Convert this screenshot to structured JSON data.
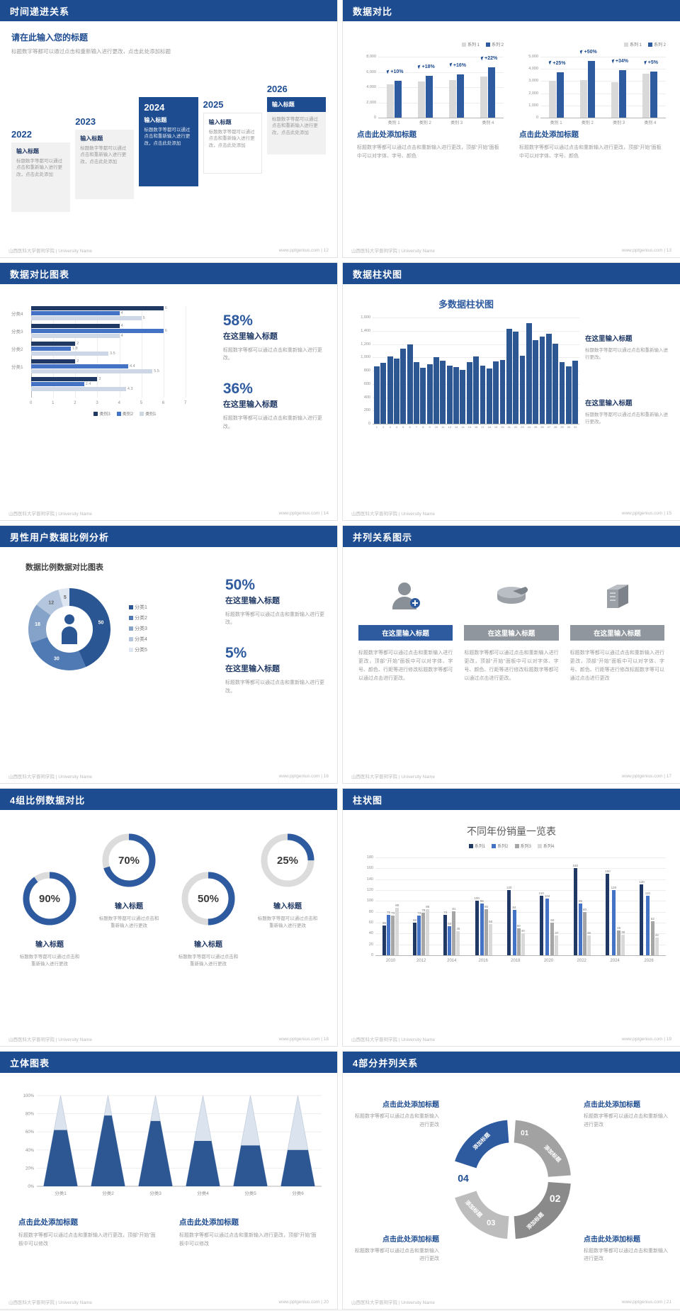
{
  "theme": {
    "header_blue": "#1d4c90",
    "navy": "#1f3864",
    "blue": "#2e5a9f",
    "mid_blue": "#4472c4",
    "light_blue": "#cdd7e6",
    "bar_gray": "#d9d9d9",
    "series_gray": "#a6a6a6",
    "text_gray": "#9b9b9b"
  },
  "footer": {
    "left": "山西医科大学晋祠学院 | University Name"
  },
  "slides": [
    {
      "type": "timeline",
      "title": "时间递进关系",
      "footer_right": "www.pptgenius.com | 12",
      "heading": "请在此输入您的标题",
      "heading_text": "标题数字等都可以通过点击和重新输入进行更改，点击此处添加标题",
      "items": [
        {
          "year": "2022",
          "style": "light",
          "item_title": "输入标题",
          "text": "标题数字等都可以通过点击和重新输入进行更改，点击此处添加"
        },
        {
          "year": "2023",
          "style": "light",
          "item_title": "输入标题",
          "text": "标题数字等都可以通过点击和重新输入进行更改，点击此处添加"
        },
        {
          "year": "2024",
          "style": "dark",
          "item_title": "输入标题",
          "text": "标题数字等都可以通过点击和重新输入进行更改，点击此处添加"
        },
        {
          "year": "2025",
          "style": "white",
          "item_title": "输入标题",
          "text": "标题数字等都可以通过点击和重新输入进行更改，点击此处添加"
        },
        {
          "year": "2026",
          "style": "split",
          "item_title": "输入标题",
          "text": "标题数字等都可以通过点击和重新输入进行更改，点击此处添加"
        }
      ]
    },
    {
      "type": "compare",
      "title": "数据对比",
      "footer_right": "www.pptgenius.com | 13",
      "charts": [
        {
          "type": "bar",
          "legend": [
            "系列 1",
            "系列 2"
          ],
          "y_ticks": [
            "8,000",
            "6,000",
            "4,000",
            "2,000",
            "0"
          ],
          "y_max": 8000,
          "categories": [
            "类别 1",
            "类别 2",
            "类别 3",
            "类别 4"
          ],
          "series": [
            {
              "name": "系列1",
              "values": [
                4400,
                4700,
                4900,
                5400
              ]
            },
            {
              "name": "系列2",
              "values": [
                4800,
                5500,
                5700,
                6600
              ]
            }
          ],
          "annotations": [
            "+10%",
            "+18%",
            "+16%",
            "+22%"
          ],
          "caption_title": "点击此处添加标题",
          "caption_text": "标题数字等都可以通过点击和重新输入进行更改，顶部“开始”面板中可以对字体、字号、颜色"
        },
        {
          "type": "bar",
          "legend": [
            "系列 1",
            "系列 2"
          ],
          "y_ticks": [
            "5,000",
            "4,000",
            "3,000",
            "2,000",
            "1,000",
            "0"
          ],
          "y_max": 5000,
          "categories": [
            "类别 1",
            "类别 2",
            "类别 3",
            "类别 4"
          ],
          "series": [
            {
              "name": "系列1",
              "values": [
                3000,
                3100,
                2900,
                3600
              ]
            },
            {
              "name": "系列2",
              "values": [
                3750,
                4650,
                3890,
                3780
              ]
            }
          ],
          "annotations": [
            "+25%",
            "+50%",
            "+34%",
            "+5%"
          ],
          "caption_title": "点击此处添加标题",
          "caption_text": "标题数字等都可以通过点击和重新输入进行更改，顶部“开始”面板中可以对字体、字号、颜色"
        }
      ]
    },
    {
      "type": "hbar",
      "title": "数据对比图表",
      "footer_right": "www.pptgenius.com | 14",
      "chart": {
        "type": "bar",
        "orientation": "horizontal",
        "x_ticks": [
          "0",
          "1",
          "2",
          "3",
          "4",
          "5",
          "6",
          "7"
        ],
        "x_max": 7,
        "groups": [
          {
            "label": "分类4",
            "values": [
              6,
              4,
              5
            ]
          },
          {
            "label": "分类3",
            "values": [
              4,
              6,
              4
            ]
          },
          {
            "label": "分类2",
            "values": [
              2,
              1.8,
              3.5
            ]
          },
          {
            "label": "分类1",
            "values": [
              2,
              4.4,
              5.5
            ]
          },
          {
            "label": "",
            "values": [
              3,
              2.4,
              4.3
            ]
          }
        ],
        "legend": [
          "类别3",
          "类别2",
          "类别1"
        ]
      },
      "stats": [
        {
          "pct": "58%",
          "stat_title": "在这里输入标题",
          "text": "标题数字等都可以通过点击和重新输入进行更改。"
        },
        {
          "pct": "36%",
          "stat_title": "在这里输入标题",
          "text": "标题数字等都可以通过点击和重新输入进行更改。"
        }
      ]
    },
    {
      "type": "columns31",
      "title": "数据柱状图",
      "footer_right": "www.pptgenius.com | 15",
      "chart": {
        "type": "bar",
        "title": "多数据柱状图",
        "y_ticks": [
          "1,600",
          "1,400",
          "1,200",
          "1,000",
          "800",
          "600",
          "400",
          "200",
          "0"
        ],
        "y_max": 1600,
        "x_labels": [
          "1",
          "2",
          "3",
          "4",
          "5",
          "6",
          "7",
          "8",
          "9",
          "10",
          "11",
          "12",
          "13",
          "14",
          "15",
          "16",
          "17",
          "18",
          "19",
          "20",
          "21",
          "22",
          "23",
          "24",
          "25",
          "26",
          "27",
          "28",
          "29",
          "30",
          "31"
        ],
        "values": [
          860,
          920,
          1010,
          980,
          1130,
          1190,
          930,
          840,
          900,
          1000,
          950,
          880,
          850,
          810,
          930,
          1010,
          870,
          830,
          940,
          960,
          1430,
          1390,
          1020,
          1510,
          1260,
          1310,
          1360,
          1210,
          930,
          860,
          950
        ]
      },
      "stats": [
        {
          "stat_title": "在这里输入标题",
          "text": "标题数字等都可以通过点击和重新输入进行更改。"
        },
        {
          "stat_title": "在这里输入标题",
          "text": "标题数字等都可以通过点击和重新输入进行更改。"
        }
      ]
    },
    {
      "type": "donut",
      "title": "男性用户数据比例分析",
      "footer_right": "www.pptgenius.com | 16",
      "chart": {
        "type": "pie",
        "title": "数据比例数据对比图表",
        "segments": [
          {
            "name": "分类1",
            "value": 50,
            "color": "#2a5693"
          },
          {
            "name": "分类2",
            "value": 30,
            "color": "#4f7ab3"
          },
          {
            "name": "分类3",
            "value": 18,
            "color": "#85a3c8"
          },
          {
            "name": "分类4",
            "value": 12,
            "color": "#b3c6de"
          },
          {
            "name": "分类5",
            "value": 5,
            "color": "#dde6f1"
          }
        ]
      },
      "stats": [
        {
          "pct": "50%",
          "stat_title": "在这里输入标题",
          "text": "标题数字等都可以通过点击和重新输入进行更改。"
        },
        {
          "pct": "5%",
          "stat_title": "在这里输入标题",
          "text": "标题数字等都可以通过点击和重新输入进行更改。"
        }
      ]
    },
    {
      "type": "parallel",
      "title": "并列关系图示",
      "footer_right": "www.pptgenius.com | 17",
      "columns": [
        {
          "icon": "user-plus-icon",
          "bar_style": "blue",
          "heading": "在这里输入标题",
          "text": "标题数字等都可以通过点击和重新输入进行更改，顶部“开始”面板中可以对字体、字号、颜色、行距等进行修改标题数字等都可以通过点击进行更改。"
        },
        {
          "icon": "pie-3d-icon",
          "bar_style": "gray",
          "heading": "在这里输入标题",
          "text": "标题数字等都可以通过点击和重新输入进行更改，顶部“开始”面板中可以对字体、字号、颜色、行距等进行修改标题数字等都可以通过点击进行更改。"
        },
        {
          "icon": "building-3d-icon",
          "bar_style": "gray",
          "heading": "在这里输入标题",
          "text": "标题数字等都可以通过点击和重新输入进行更改，顶部“开始”面板中可以对字体、字号、颜色、行距等进行修改标题数字等可以通过点击进行更改"
        }
      ]
    },
    {
      "type": "rings",
      "title": "4组比例数据对比",
      "footer_right": "www.pptgenius.com | 18",
      "rings": [
        {
          "pct": 90,
          "label": "90%",
          "ring_title": "输入标题",
          "text": "标题数字等都可以通过点击和重新输入进行更改",
          "raised": false
        },
        {
          "pct": 70,
          "label": "70%",
          "ring_title": "输入标题",
          "text": "标题数字等都可以通过点击和重新输入进行更改",
          "raised": true
        },
        {
          "pct": 50,
          "label": "50%",
          "ring_title": "输入标题",
          "text": "标题数字等都可以通过点击和重新输入进行更改",
          "raised": false
        },
        {
          "pct": 25,
          "label": "25%",
          "ring_title": "输入标题",
          "text": "标题数字等都可以通过点击和重新输入进行更改",
          "raised": true
        }
      ]
    },
    {
      "type": "grouped",
      "title": "柱状图",
      "footer_right": "www.pptgenius.com | 19",
      "chart": {
        "type": "bar",
        "title": "不同年份销量一览表",
        "legend": [
          "系列1",
          "系列2",
          "系列3",
          "系列4"
        ],
        "y_ticks": [
          "180",
          "160",
          "140",
          "120",
          "100",
          "80",
          "60",
          "40",
          "20",
          "0"
        ],
        "y_max": 180,
        "categories": [
          "2010",
          "2012",
          "2014",
          "2016",
          "2018",
          "2020",
          "2022",
          "2024",
          "2026"
        ],
        "series": [
          {
            "name": "系列1",
            "values": [
              55,
              60,
              74,
              100,
              120,
              110,
              160,
              150,
              130
            ]
          },
          {
            "name": "系列2",
            "values": [
              75,
              73,
              54,
              95,
              84,
              104,
              95,
              120,
              110
            ]
          },
          {
            "name": "系列3",
            "values": [
              73,
              78,
              81,
              85,
              50,
              60,
              80,
              46,
              62
            ]
          },
          {
            "name": "系列4",
            "values": [
              88,
              85,
              45,
              58,
              40,
              37,
              36,
              38,
              32
            ]
          }
        ]
      }
    },
    {
      "type": "cones",
      "title": "立体图表",
      "footer_right": "www.pptgenius.com | 20",
      "chart": {
        "type": "bar",
        "style": "3d-cone",
        "y_ticks": [
          "100%",
          "80%",
          "60%",
          "40%",
          "20%",
          "0%"
        ],
        "categories": [
          "分类1",
          "分类2",
          "分类3",
          "分类4",
          "分类5",
          "分类6"
        ],
        "values": [
          62,
          78,
          72,
          50,
          45,
          40
        ]
      },
      "captions": [
        {
          "cap_title": "点击此处添加标题",
          "text": "标题数字等都可以通过点击和重新输入进行更改，顶部“开始”面板中可以修改"
        },
        {
          "cap_title": "点击此处添加标题",
          "text": "标题数字等都可以通过点击和重新输入进行更改，顶部“开始”面板中可以修改"
        }
      ]
    },
    {
      "type": "circle4",
      "title": "4部分并列关系",
      "footer_right": "www.pptgenius.com | 21",
      "segments": [
        {
          "num": "01",
          "label": "添加标题",
          "color": "#a2a2a2",
          "pos": "tr"
        },
        {
          "num": "02",
          "label": "添加标题",
          "color": "#8a8a8a",
          "pos": "br"
        },
        {
          "num": "03",
          "label": "添加标题",
          "color": "#bdbdbd",
          "pos": "bl"
        },
        {
          "num": "04",
          "label": "添加标题",
          "color": "#2e5a9f",
          "pos": "tl"
        }
      ],
      "blocks": [
        {
          "block_title": "点击此处添加标题",
          "text": "标题数字等都可以通过点击和重新输入进行更改",
          "pos": "tl"
        },
        {
          "block_title": "点击此处添加标题",
          "text": "标题数字等都可以通过点击和重新输入进行更改",
          "pos": "tr"
        },
        {
          "block_title": "点击此处添加标题",
          "text": "标题数字等都可以通过点击和重新输入进行更改",
          "pos": "bl"
        },
        {
          "block_title": "点击此处添加标题",
          "text": "标题数字等都可以通过点击和重新输入进行更改",
          "pos": "br"
        }
      ]
    }
  ]
}
